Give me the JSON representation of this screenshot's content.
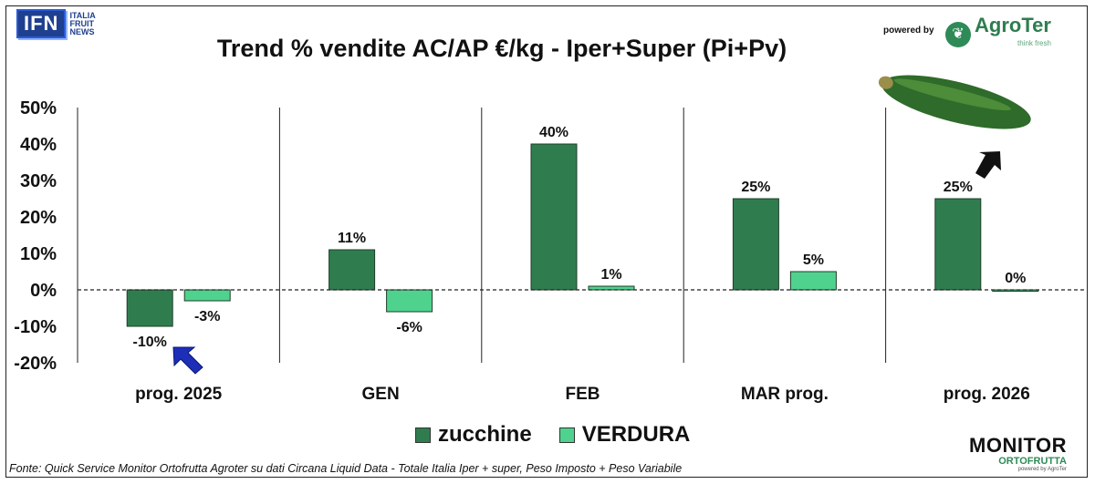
{
  "header": {
    "logo_text": "IFN",
    "logo_sub": [
      "ITALIA",
      "FRUIT",
      "NEWS"
    ],
    "powered_by": "powered by",
    "agroter_name": "AgroTer",
    "agroter_tagline": "think fresh"
  },
  "chart_data": {
    "type": "bar",
    "title": "Trend % vendite AC/AP €/kg -  Iper+Super (Pi+Pv)",
    "categories": [
      "prog. 2025",
      "GEN",
      "FEB",
      "MAR prog.",
      "prog. 2026"
    ],
    "series": [
      {
        "name": "zucchine",
        "values": [
          -10,
          11,
          40,
          25,
          25
        ],
        "labels": [
          "-10%",
          "11%",
          "40%",
          "25%",
          "25%"
        ]
      },
      {
        "name": "VERDURA",
        "values": [
          -3,
          -6,
          1,
          5,
          0
        ],
        "labels": [
          "-3%",
          "-6%",
          "1%",
          "5%",
          "0%"
        ]
      }
    ],
    "y_ticks": [
      "50%",
      "40%",
      "30%",
      "20%",
      "10%",
      "0%",
      "-10%",
      "-20%"
    ],
    "ylim": [
      -20,
      50
    ],
    "colors": {
      "zucchine": "#2f7d4f",
      "VERDURA": "#4fd28e"
    },
    "legend_position": "bottom",
    "grid": false
  },
  "footer": {
    "source": "Fonte: Quick Service Monitor Ortofrutta Agroter su dati Circana Liquid Data - Totale Italia Iper + super, Peso Imposto + Peso Variabile",
    "monitor_title": "MONITOR",
    "monitor_sub": "ORTOFRUTTA",
    "monitor_small": "powered by AgroTer"
  }
}
